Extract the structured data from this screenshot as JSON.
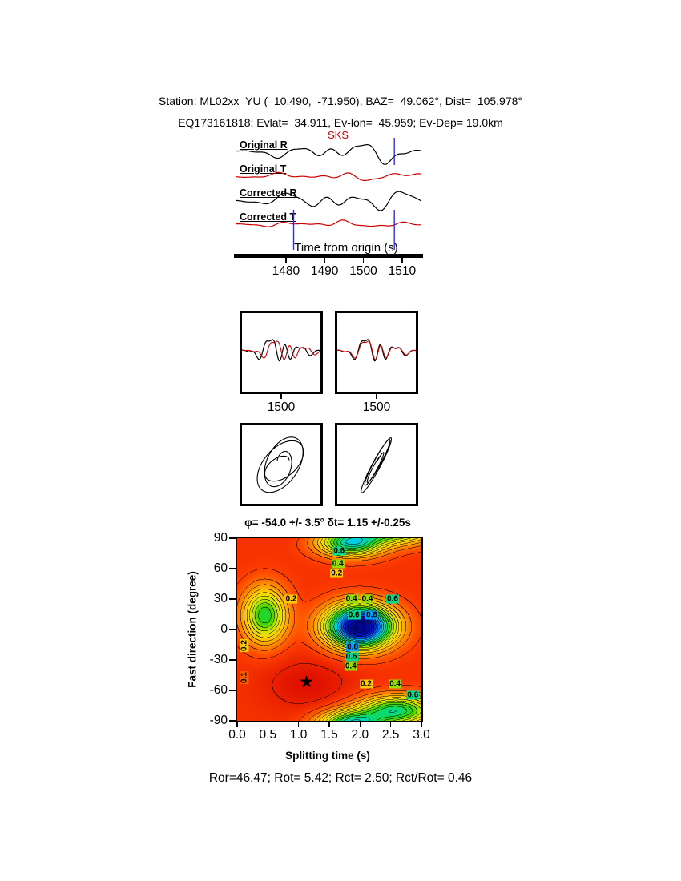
{
  "header": {
    "line1": "Station: ML02xx_YU (  10.490,  -71.950), BAZ=  49.062°, Dist=  105.978°",
    "line2": "EQ173161818; Evlat=  34.911, Ev-lon=  45.959; Ev-Dep= 19.0km"
  },
  "footer": {
    "result_line": "Ror=46.47; Rot= 5.42; Rct= 2.50; Rct/Rot= 0.46"
  },
  "chart_data": [
    {
      "type": "line",
      "name": "waveform-traces",
      "phase_label": "SKS",
      "xlabel": "Time from origin (s)",
      "x_range": [
        1467,
        1515
      ],
      "x_ticks": [
        1480,
        1490,
        1500,
        1510
      ],
      "marker_color": "#3333cc",
      "markers": [
        {
          "t": 1508,
          "row": 0
        },
        {
          "t": 1482,
          "row": 3
        },
        {
          "t": 1508,
          "row": 3
        }
      ],
      "traces": [
        {
          "label": "Original R",
          "color": "#000000",
          "base": 24,
          "amp": 13,
          "env": [
            0.66,
            0.38
          ],
          "comps": [
            [
              3.1,
              0.55,
              0.15
            ],
            [
              5.3,
              0.4,
              0.52
            ],
            [
              8.7,
              0.22,
              0.8
            ],
            [
              1.7,
              0.3,
              0.33
            ]
          ]
        },
        {
          "label": "Original T",
          "color": "#cc0000",
          "base": 54,
          "amp": 6,
          "env": [
            0.6,
            0.42
          ],
          "comps": [
            [
              2.9,
              0.5,
              0.6
            ],
            [
              5.1,
              0.35,
              0.1
            ],
            [
              7.9,
              0.25,
              0.45
            ],
            [
              1.5,
              0.3,
              0.8
            ]
          ]
        },
        {
          "label": "Corrected R",
          "color": "#000000",
          "base": 84,
          "amp": 16,
          "env": [
            0.62,
            0.3
          ],
          "comps": [
            [
              3.0,
              0.6,
              0.45
            ],
            [
              4.9,
              0.45,
              0.9
            ],
            [
              8.2,
              0.2,
              0.25
            ],
            [
              1.9,
              0.35,
              0.6
            ]
          ]
        },
        {
          "label": "Corrected T",
          "color": "#cc0000",
          "base": 114,
          "amp": 4.5,
          "env": [
            0.55,
            0.45
          ],
          "comps": [
            [
              3.3,
              0.5,
              0.3
            ],
            [
              6.1,
              0.35,
              0.7
            ],
            [
              9.1,
              0.2,
              0.05
            ],
            [
              1.6,
              0.3,
              0.5
            ]
          ]
        }
      ]
    },
    {
      "type": "line",
      "name": "fast-slow-waveform-comparison",
      "ticks": [
        "1500",
        "1500"
      ],
      "red": "#cc0000",
      "comps": [
        [
          2.7,
          0.55,
          0.3
        ],
        [
          4.6,
          0.4,
          0.72
        ],
        [
          7.6,
          0.3,
          0.1
        ],
        [
          1.6,
          0.25,
          0.5
        ]
      ],
      "panels": [
        {
          "name": "original",
          "shift": 0.06
        },
        {
          "name": "corrected",
          "shift": 0.006
        }
      ]
    },
    {
      "type": "scatter",
      "name": "particle-motion",
      "panels": [
        {
          "name": "original",
          "cycles": 3.2,
          "ellipticity": 0.55,
          "rot0": 0.5,
          "rot1": 1.4
        },
        {
          "name": "corrected",
          "cycles": 3.2,
          "ellipticity": 0.13,
          "rot0": 1.08,
          "rot1": 1.08
        }
      ]
    },
    {
      "type": "heatmap",
      "name": "splitting-misfit-surface",
      "title": "φ= -54.0 +/- 3.5° δt= 1.15 +/-0.25s",
      "xlabel": "Splitting time (s)",
      "ylabel": "Fast direction (degree)",
      "xlim": [
        0.0,
        3.0
      ],
      "ylim": [
        -90,
        90
      ],
      "x_ticks": [
        "0.0",
        "0.5",
        "1.0",
        "1.5",
        "2.0",
        "2.5",
        "3.0"
      ],
      "y_ticks": [
        90,
        60,
        30,
        0,
        -30,
        -60,
        -90
      ],
      "best_fit": {
        "phi": -54.0,
        "phi_err": 3.5,
        "dt": 1.15,
        "dt_err": 0.25
      },
      "star": {
        "dt": 1.15,
        "phi": -54
      },
      "contour_step": 0.05,
      "colormap": [
        [
          0.0,
          "#d40000"
        ],
        [
          0.1,
          "#ff4000"
        ],
        [
          0.2,
          "#ff9600"
        ],
        [
          0.3,
          "#ffd800"
        ],
        [
          0.4,
          "#c8e600"
        ],
        [
          0.5,
          "#32d200"
        ],
        [
          0.6,
          "#00dc8c"
        ],
        [
          0.7,
          "#00c8ff"
        ],
        [
          0.8,
          "#0064ff"
        ],
        [
          0.9,
          "#0014d2"
        ],
        [
          1.12,
          "#000078"
        ]
      ],
      "field": {
        "base": 0.08,
        "peaks": [
          [
            2.0,
            0.52,
            3,
            20,
            1.0
          ],
          [
            0.45,
            0.34,
            14,
            26,
            0.46
          ],
          [
            1.85,
            0.5,
            86,
            13,
            0.56
          ],
          [
            2.6,
            0.6,
            -80,
            14,
            0.5
          ],
          [
            1.15,
            0.75,
            -54,
            28,
            -0.055
          ]
        ]
      },
      "contour_labels": [
        [
          1.66,
          77,
          "0.6",
          "#00dc8c",
          false
        ],
        [
          1.64,
          65,
          "0.4",
          "#96dc00",
          false
        ],
        [
          1.62,
          55,
          "0.2",
          "#ffc800",
          false
        ],
        [
          0.88,
          30,
          "0.2",
          "#ffc800",
          false
        ],
        [
          1.86,
          30,
          "0.4",
          "#96dc00",
          false
        ],
        [
          2.12,
          30,
          "0.4",
          "#96dc00",
          false
        ],
        [
          2.53,
          30,
          "0.6",
          "#00dc8c",
          false
        ],
        [
          1.9,
          14,
          "0.6",
          "#00dc8c",
          false
        ],
        [
          2.19,
          14,
          "0.8",
          "#00a0ff",
          false
        ],
        [
          1.88,
          -17,
          "0.8",
          "#00a0ff",
          false
        ],
        [
          1.86,
          -27,
          "0.6",
          "#00dc8c",
          false
        ],
        [
          1.85,
          -36,
          "0.4",
          "#96dc00",
          false
        ],
        [
          2.1,
          -54,
          "0.2",
          "#ffc800",
          false
        ],
        [
          2.57,
          -54,
          "0.4",
          "#96dc00",
          false
        ],
        [
          2.86,
          -65,
          "0.6",
          "#00dc8c",
          false
        ],
        [
          0.12,
          -16,
          "0.2",
          "#ffc800",
          true
        ],
        [
          0.12,
          -47,
          "0.1",
          "#ff5a00",
          true
        ]
      ]
    }
  ]
}
